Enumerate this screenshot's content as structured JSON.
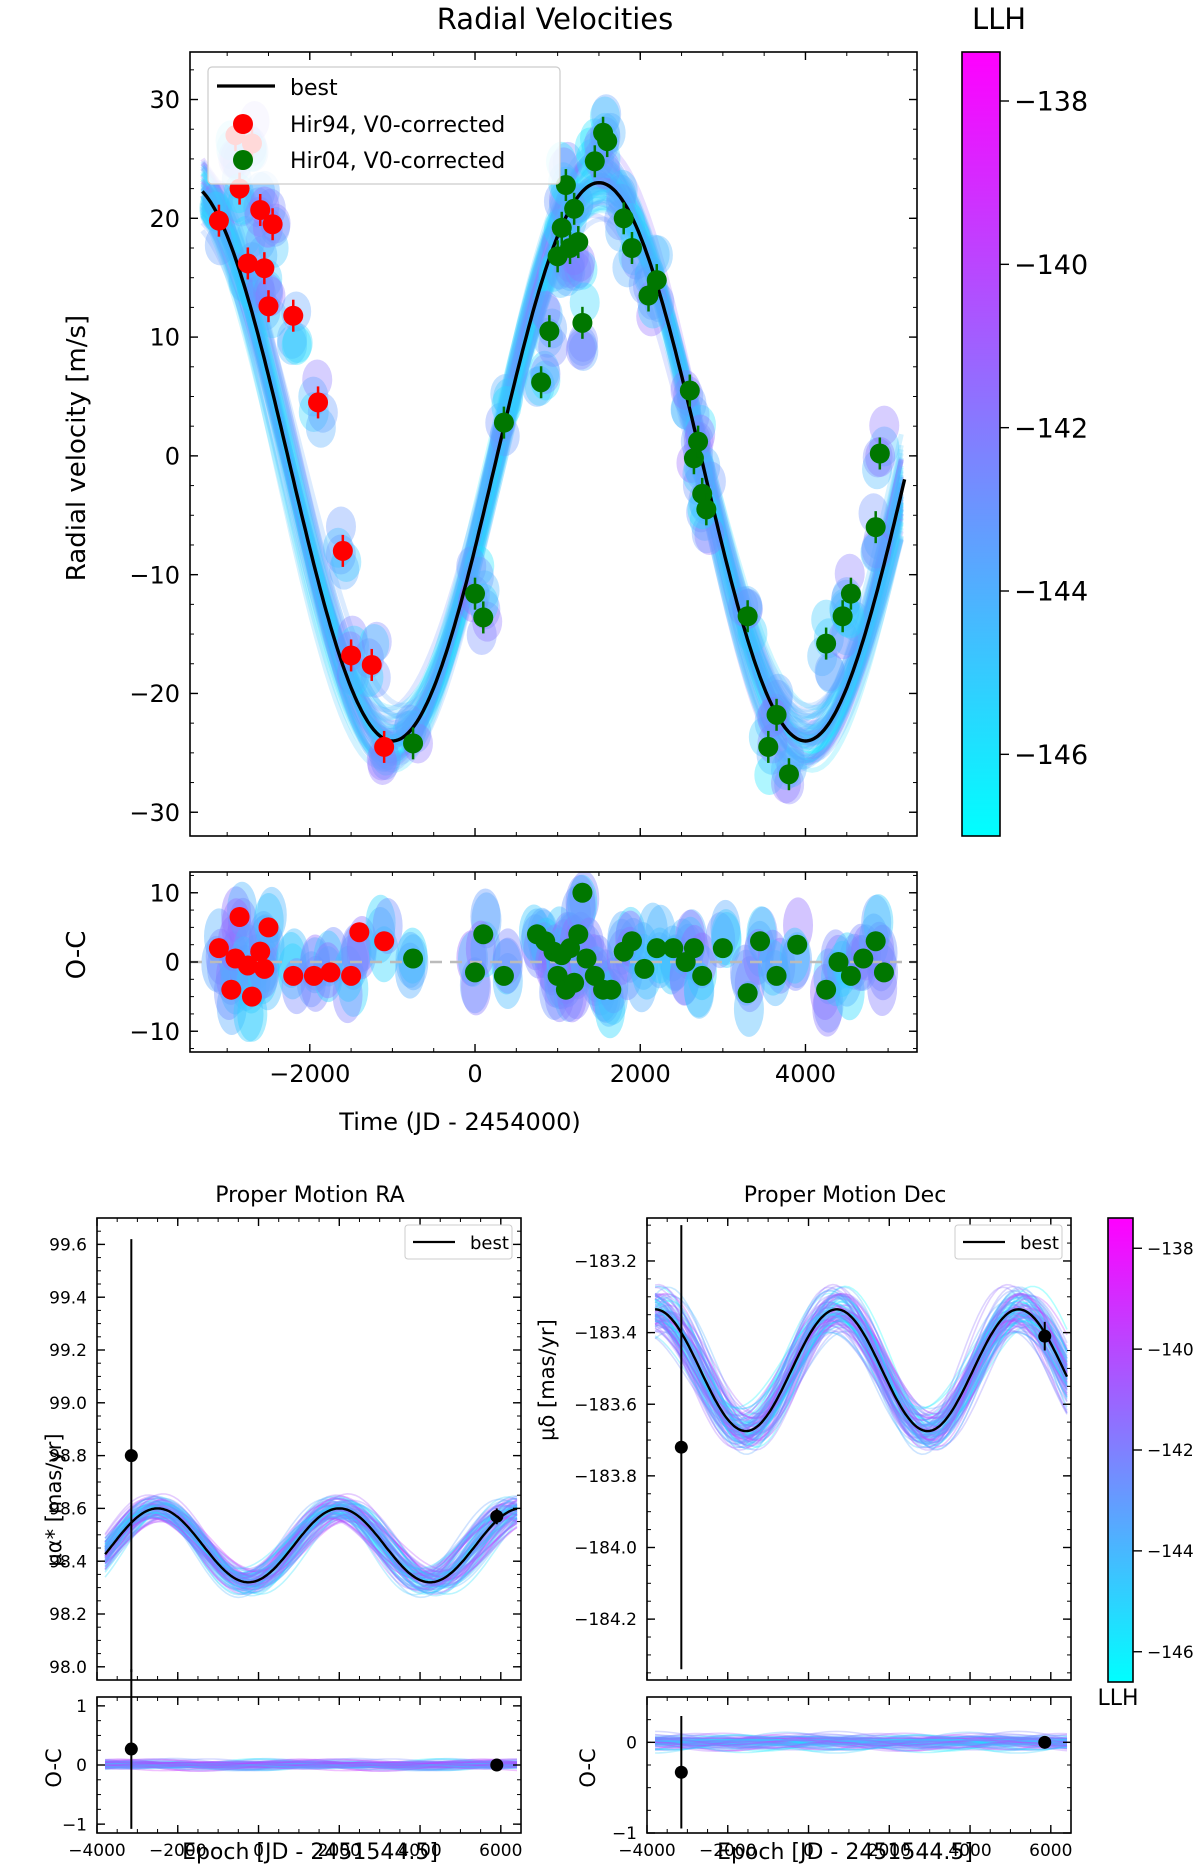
{
  "colors": {
    "cmap_low": "#00ffff",
    "cmap_high": "#ff00ff",
    "best": "#000000",
    "hir94": "#ff0000",
    "hir04": "#007700",
    "zero_line": "#bbbbbb"
  },
  "chart_data": [
    {
      "id": "rv",
      "type": "line",
      "title": "Radial Velocities",
      "xlabel": "Time (JD - 2454000)",
      "ylabel": "Radial velocity [m/s]",
      "xlim": [
        -3450,
        5350
      ],
      "ylim": [
        -32,
        34
      ],
      "xticks": [
        -2000,
        0,
        2000,
        4000
      ],
      "yticks": [
        -30,
        -20,
        -10,
        0,
        10,
        20,
        30
      ],
      "legend": {
        "position": "top-left",
        "entries": [
          "best",
          "Hir94, V0-corrected",
          "Hir04, V0-corrected"
        ]
      },
      "best_model": {
        "amplitude": 23.5,
        "period": 5000,
        "offset": -0.5,
        "t_peak": 1500,
        "x_start": -3300,
        "x_end": 5200
      },
      "series": [
        {
          "name": "Hir94, V0-corrected",
          "color": "#ff0000",
          "x": [
            -3100,
            -2900,
            -2850,
            -2750,
            -2700,
            -2600,
            -2550,
            -2500,
            -2450,
            -2200,
            -1900,
            -1600,
            -1500,
            -1250,
            -1100
          ],
          "y": [
            19.8,
            27.0,
            22.5,
            16.2,
            26.3,
            20.7,
            15.8,
            12.6,
            19.5,
            11.8,
            4.5,
            -8.0,
            -16.8,
            -17.6,
            -24.5
          ]
        },
        {
          "name": "Hir04, V0-corrected",
          "color": "#007700",
          "x": [
            -750,
            0,
            100,
            350,
            800,
            900,
            1000,
            1050,
            1100,
            1150,
            1200,
            1250,
            1300,
            1450,
            1550,
            1600,
            1800,
            1900,
            2100,
            2200,
            2600,
            2650,
            2700,
            2750,
            2800,
            3300,
            3550,
            3650,
            3800,
            4250,
            4450,
            4550,
            4850,
            4900
          ],
          "y": [
            -24.2,
            -11.6,
            -13.6,
            2.8,
            6.2,
            10.5,
            16.8,
            19.2,
            22.8,
            17.5,
            20.8,
            18.0,
            11.2,
            24.8,
            27.2,
            26.5,
            20.0,
            17.5,
            13.5,
            14.8,
            5.5,
            -0.2,
            1.2,
            -3.2,
            -4.5,
            -13.5,
            -24.5,
            -21.8,
            -26.8,
            -15.8,
            -13.5,
            -11.6,
            -6.0,
            0.2
          ]
        }
      ]
    },
    {
      "id": "rv_oc",
      "type": "scatter",
      "xlabel": "Time (JD - 2454000)",
      "ylabel": "O-C",
      "xlim": [
        -3450,
        5350
      ],
      "ylim": [
        -13,
        13
      ],
      "xticks": [
        -2000,
        0,
        2000,
        4000
      ],
      "yticks": [
        -10,
        0,
        10
      ],
      "series": [
        {
          "name": "Hir94, V0-corrected",
          "color": "#ff0000",
          "x": [
            -3100,
            -2950,
            -2900,
            -2850,
            -2750,
            -2700,
            -2600,
            -2550,
            -2500,
            -2200,
            -1950,
            -1750,
            -1500,
            -1400,
            -1100
          ],
          "y": [
            2.0,
            -4.0,
            0.5,
            6.5,
            -0.5,
            -5.0,
            1.5,
            -1.0,
            5.0,
            -2.0,
            -2.0,
            -1.5,
            -2.0,
            4.3,
            3.0
          ]
        },
        {
          "name": "Hir04, V0-corrected",
          "color": "#007700",
          "x": [
            -750,
            0,
            100,
            350,
            750,
            850,
            950,
            1000,
            1050,
            1100,
            1150,
            1200,
            1250,
            1300,
            1350,
            1450,
            1550,
            1650,
            1800,
            1900,
            2050,
            2200,
            2400,
            2550,
            2650,
            2750,
            3000,
            3300,
            3450,
            3650,
            3900,
            4250,
            4400,
            4550,
            4700,
            4850,
            4950
          ],
          "y": [
            0.5,
            -1.5,
            4.0,
            -2.0,
            4.0,
            3.0,
            1.5,
            -2.0,
            1.0,
            -4.0,
            2.0,
            -3.0,
            4.0,
            10.0,
            0.5,
            -2.0,
            -4.0,
            -4.0,
            1.5,
            3.0,
            -1.0,
            2.0,
            2.0,
            0.0,
            2.0,
            -2.0,
            2.0,
            -4.5,
            3.0,
            -2.0,
            2.5,
            -4.0,
            0.0,
            -2.0,
            0.5,
            3.0,
            -1.5
          ]
        }
      ]
    },
    {
      "id": "pm_ra",
      "type": "line",
      "title": "Proper Motion RA",
      "xlabel": "Epoch [JD - 2451544.5]",
      "ylabel": "μα* [mas/yr]",
      "xlim": [
        -4000,
        6500
      ],
      "ylim": [
        97.95,
        99.7
      ],
      "xticks": [
        -4000,
        -2000,
        0,
        2000,
        4000,
        6000
      ],
      "yticks": [
        98.0,
        98.2,
        98.4,
        98.6,
        98.8,
        99.0,
        99.2,
        99.4,
        99.6
      ],
      "legend": {
        "position": "top-right",
        "entries": [
          "best"
        ]
      },
      "best_model": {
        "center": 98.46,
        "amplitude": 0.14,
        "period": 4500,
        "t_peak": -2500,
        "x_start": -3800,
        "x_end": 6400
      },
      "points": [
        {
          "x": -3150,
          "y": 98.8,
          "err": 0.82
        },
        {
          "x": 5900,
          "y": 98.57,
          "err": 0.03
        }
      ]
    },
    {
      "id": "pm_ra_oc",
      "type": "scatter",
      "xlabel": "Epoch [JD - 2451544.5]",
      "ylabel": "O-C",
      "xlim": [
        -4000,
        6500
      ],
      "ylim": [
        -1.15,
        1.15
      ],
      "xticks": [
        -4000,
        -2000,
        0,
        2000,
        4000,
        6000
      ],
      "yticks": [
        -1,
        0,
        1
      ],
      "points": [
        {
          "x": -3150,
          "y": 0.27,
          "err": 1.35
        },
        {
          "x": 5900,
          "y": 0.0,
          "err": 0.04
        }
      ]
    },
    {
      "id": "pm_dec",
      "type": "line",
      "title": "Proper Motion Dec",
      "xlabel": "Epoch [JD - 2451544.5]",
      "ylabel": "μδ [mas/yr]",
      "xlim": [
        -4000,
        6500
      ],
      "ylim": [
        -184.37,
        -183.08
      ],
      "xticks": [
        -4000,
        -2000,
        0,
        2000,
        4000,
        6000
      ],
      "yticks": [
        -184.2,
        -184.0,
        -183.8,
        -183.6,
        -183.4,
        -183.2
      ],
      "legend": {
        "position": "top-right",
        "entries": [
          "best"
        ]
      },
      "best_model": {
        "center": -183.505,
        "amplitude": 0.17,
        "period": 4500,
        "t_peak": 700,
        "x_start": -3800,
        "x_end": 6400
      },
      "points": [
        {
          "x": -3150,
          "y": -183.72,
          "err": 0.62
        },
        {
          "x": 5850,
          "y": -183.41,
          "err": 0.04
        }
      ]
    },
    {
      "id": "pm_dec_oc",
      "type": "scatter",
      "xlabel": "Epoch [JD - 2451544.5]",
      "ylabel": "O-C",
      "xlim": [
        -4000,
        6500
      ],
      "ylim": [
        -1.0,
        0.5
      ],
      "xticks": [
        -4000,
        -2000,
        0,
        2000,
        4000,
        6000
      ],
      "yticks": [
        -1,
        0
      ],
      "points": [
        {
          "x": -3150,
          "y": -0.33,
          "err": 0.62
        },
        {
          "x": 5850,
          "y": 0.0,
          "err": 0.04
        }
      ]
    },
    {
      "id": "cbar_top",
      "type": "heatmap",
      "title": "LLH",
      "range": [
        -147.0,
        -137.4
      ],
      "ticks": [
        -146,
        -144,
        -142,
        -140,
        -138
      ],
      "tick_labels": [
        "−146",
        "−144",
        "−142",
        "−140",
        "−138"
      ]
    },
    {
      "id": "cbar_bottom",
      "type": "heatmap",
      "title": "LLH",
      "range": [
        -146.6,
        -137.4
      ],
      "ticks": [
        -146,
        -144,
        -142,
        -140,
        -138
      ],
      "tick_labels": [
        "−146",
        "−144",
        "−142",
        "−140",
        "−138"
      ]
    }
  ]
}
